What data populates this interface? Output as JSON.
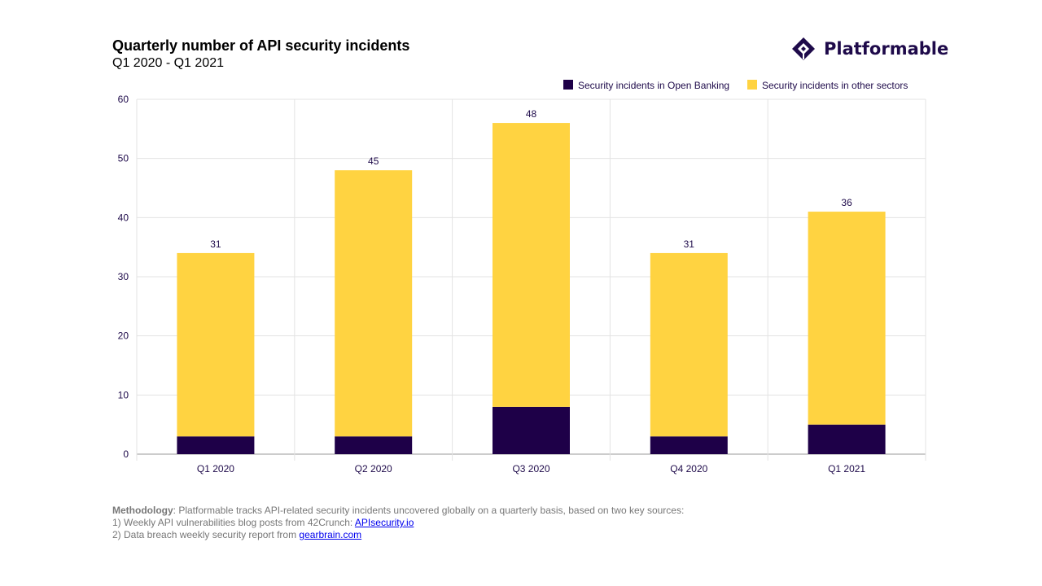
{
  "header": {
    "title": "Quarterly number of API security incidents",
    "subtitle": "Q1 2020 - Q1 2021",
    "logo_text": "Platformable"
  },
  "colors": {
    "open_banking": "#1e0048",
    "other": "#ffd341",
    "text": "#1e0a4a"
  },
  "chart_data": {
    "type": "bar",
    "stacked": true,
    "title": "Quarterly number of API security incidents",
    "subtitle": "Q1 2020 - Q1 2021",
    "categories": [
      "Q1 2020",
      "Q2 2020",
      "Q3 2020",
      "Q4 2020",
      "Q1 2021"
    ],
    "series": [
      {
        "name": "Security incidents in Open Banking",
        "values": [
          3,
          3,
          8,
          3,
          5
        ]
      },
      {
        "name": "Security incidents in other sectors",
        "values": [
          31,
          45,
          48,
          31,
          36
        ]
      }
    ],
    "ylim": [
      0,
      60
    ],
    "yticks": [
      "0",
      "10",
      "20",
      "30",
      "40",
      "50",
      "60"
    ],
    "grid": true,
    "legend": "top-right",
    "xlabel": "",
    "ylabel": ""
  },
  "footer": {
    "methodology_label": "Methodology",
    "methodology_text": ": Platformable tracks API-related security incidents uncovered globally on a quarterly basis, based on two key sources:",
    "source1_text": "1) Weekly API vulnerabilities blog posts from 42Crunch: ",
    "source1_link": "APIsecurity.io",
    "source2_text": "2) Data breach weekly security report from ",
    "source2_link": "gearbrain.com"
  }
}
